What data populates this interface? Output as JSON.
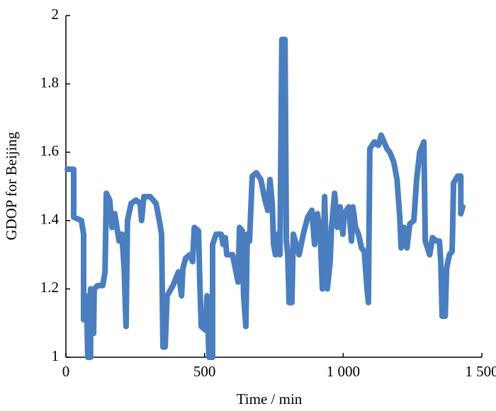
{
  "chart_data": {
    "type": "line",
    "xlabel": "Time / min",
    "ylabel": "GDOP for Beijing",
    "x": [
      5,
      28,
      28,
      56,
      64,
      64,
      74,
      79,
      89,
      89,
      100,
      102,
      115,
      133,
      141,
      146,
      158,
      166,
      176,
      192,
      202,
      210,
      217,
      222,
      235,
      253,
      268,
      273,
      281,
      304,
      325,
      337,
      345,
      350,
      358,
      365,
      386,
      406,
      417,
      422,
      432,
      447,
      457,
      463,
      478,
      483,
      488,
      503,
      509,
      516,
      529,
      529,
      542,
      560,
      567,
      575,
      580,
      601,
      611,
      621,
      626,
      636,
      641,
      649,
      654,
      662,
      672,
      687,
      703,
      718,
      728,
      736,
      744,
      749,
      756,
      764,
      772,
      779,
      790,
      795,
      800,
      805,
      815,
      820,
      831,
      841,
      856,
      872,
      887,
      897,
      907,
      917,
      925,
      933,
      943,
      953,
      958,
      969,
      979,
      989,
      999,
      1004,
      1020,
      1030,
      1035,
      1045,
      1055,
      1066,
      1076,
      1086,
      1091,
      1096,
      1112,
      1127,
      1137,
      1147,
      1158,
      1168,
      1183,
      1194,
      1204,
      1209,
      1219,
      1230,
      1240,
      1255,
      1265,
      1276,
      1291,
      1296,
      1312,
      1322,
      1337,
      1347,
      1352,
      1357,
      1368,
      1373,
      1383,
      1393,
      1398,
      1413,
      1424,
      1424,
      1431
    ],
    "series": [
      {
        "name": "GDOP",
        "color": "#4a7ebf",
        "values": [
          1.55,
          1.55,
          1.41,
          1.4,
          1.36,
          1.11,
          1.18,
          1.0,
          1.0,
          1.2,
          1.07,
          1.2,
          1.21,
          1.21,
          1.25,
          1.48,
          1.46,
          1.38,
          1.42,
          1.34,
          1.36,
          1.26,
          1.09,
          1.4,
          1.45,
          1.46,
          1.45,
          1.4,
          1.47,
          1.47,
          1.45,
          1.4,
          1.36,
          1.03,
          1.03,
          1.18,
          1.21,
          1.25,
          1.18,
          1.26,
          1.29,
          1.3,
          1.28,
          1.38,
          1.37,
          1.22,
          1.09,
          1.08,
          1.18,
          1.0,
          1.0,
          1.33,
          1.36,
          1.36,
          1.33,
          1.35,
          1.3,
          1.3,
          1.26,
          1.22,
          1.38,
          1.37,
          1.18,
          1.09,
          1.36,
          1.34,
          1.53,
          1.54,
          1.52,
          1.46,
          1.43,
          1.52,
          1.45,
          1.33,
          1.3,
          1.36,
          1.3,
          1.93,
          1.93,
          1.34,
          1.3,
          1.16,
          1.16,
          1.36,
          1.33,
          1.3,
          1.36,
          1.41,
          1.43,
          1.33,
          1.42,
          1.36,
          1.2,
          1.47,
          1.2,
          1.28,
          1.38,
          1.48,
          1.38,
          1.44,
          1.36,
          1.42,
          1.44,
          1.34,
          1.44,
          1.38,
          1.36,
          1.32,
          1.31,
          1.2,
          1.16,
          1.61,
          1.63,
          1.62,
          1.65,
          1.63,
          1.61,
          1.6,
          1.57,
          1.52,
          1.41,
          1.32,
          1.38,
          1.32,
          1.39,
          1.4,
          1.52,
          1.6,
          1.63,
          1.34,
          1.3,
          1.35,
          1.34,
          1.34,
          1.28,
          1.12,
          1.12,
          1.26,
          1.3,
          1.31,
          1.51,
          1.53,
          1.53,
          1.42,
          1.44
        ]
      }
    ],
    "xlim": [
      0,
      1500
    ],
    "xticks": [
      0,
      500,
      {
        "value": 1000,
        "label": "1 000"
      },
      {
        "value": 1500,
        "label": "1 500"
      }
    ],
    "ylim": [
      1,
      2
    ],
    "yticks": [
      1,
      1.2,
      1.4,
      1.6,
      1.8,
      2
    ]
  }
}
